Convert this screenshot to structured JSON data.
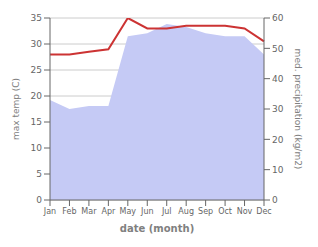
{
  "chart_data": {
    "type": "line",
    "categories": [
      "Jan",
      "Feb",
      "Mar",
      "Apr",
      "May",
      "Jun",
      "Jul",
      "Aug",
      "Sep",
      "Oct",
      "Nov",
      "Dec"
    ],
    "xlabel": "date (month)",
    "ylabel": "max temp (C)",
    "y2label": "med. precipitation (kg/m2)",
    "series": [
      {
        "type": "area",
        "axis": "y2",
        "color": "#c5caf5",
        "values": [
          33.0,
          30.0,
          31.0,
          31.0,
          54.0,
          55.0,
          58.0,
          57.0,
          55.0,
          54.0,
          54.0,
          48.0
        ]
      },
      {
        "type": "line",
        "color": "#cc3333",
        "values": [
          28.0,
          28.0,
          28.5,
          29.0,
          35.0,
          33.0,
          33.0,
          33.5,
          33.5,
          33.5,
          33.0,
          30.5
        ]
      }
    ],
    "ylim": [
      0,
      35
    ],
    "yticks": [
      0,
      5,
      10,
      15,
      20,
      25,
      30,
      35
    ],
    "y2lim": [
      0,
      60
    ],
    "y2ticks": [
      0,
      10,
      20,
      30,
      40,
      50,
      60
    ],
    "grid": true
  }
}
